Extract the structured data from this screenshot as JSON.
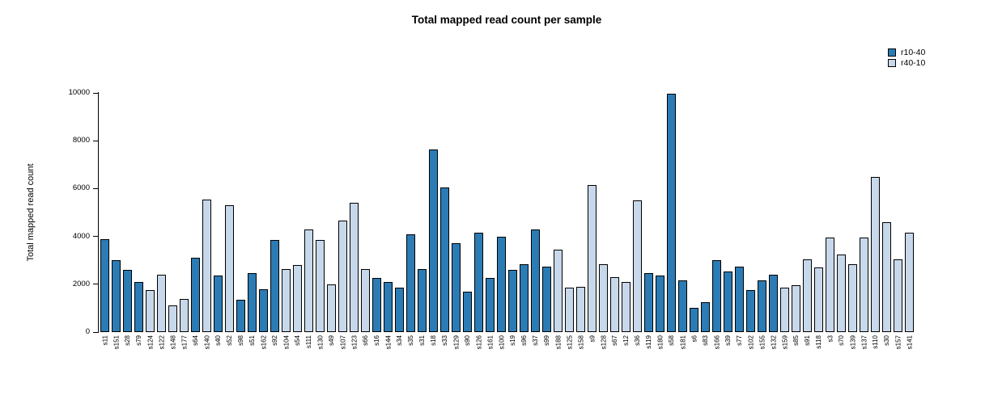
{
  "chart_data": {
    "type": "bar",
    "title": "Total mapped read count per sample",
    "ylabel": "Total mapped read count",
    "xlabel": "",
    "ylim": [
      0,
      10000
    ],
    "yticks": [
      0,
      2000,
      4000,
      6000,
      8000,
      10000
    ],
    "grid": false,
    "legend_position": "top-right",
    "legend": [
      {
        "name": "r10-40",
        "color": "#2b7bb5"
      },
      {
        "name": "r40-10",
        "color": "#c7d8eb"
      }
    ],
    "samples": [
      {
        "label": "s11",
        "value": 3900,
        "group": "r10-40"
      },
      {
        "label": "s151",
        "value": 3000,
        "group": "r10-40"
      },
      {
        "label": "s28",
        "value": 2600,
        "group": "r10-40"
      },
      {
        "label": "s79",
        "value": 2100,
        "group": "r10-40"
      },
      {
        "label": "s124",
        "value": 1750,
        "group": "r40-10"
      },
      {
        "label": "s122",
        "value": 2400,
        "group": "r40-10"
      },
      {
        "label": "s148",
        "value": 1100,
        "group": "r40-10"
      },
      {
        "label": "s177",
        "value": 1400,
        "group": "r40-10"
      },
      {
        "label": "s64",
        "value": 3100,
        "group": "r10-40"
      },
      {
        "label": "s140",
        "value": 5550,
        "group": "r40-10"
      },
      {
        "label": "s40",
        "value": 2350,
        "group": "r10-40"
      },
      {
        "label": "s52",
        "value": 5300,
        "group": "r40-10"
      },
      {
        "label": "s98",
        "value": 1350,
        "group": "r10-40"
      },
      {
        "label": "s51",
        "value": 2450,
        "group": "r10-40"
      },
      {
        "label": "s162",
        "value": 1800,
        "group": "r10-40"
      },
      {
        "label": "s92",
        "value": 3850,
        "group": "r10-40"
      },
      {
        "label": "s104",
        "value": 2650,
        "group": "r40-10"
      },
      {
        "label": "s54",
        "value": 2800,
        "group": "r40-10"
      },
      {
        "label": "s111",
        "value": 4300,
        "group": "r40-10"
      },
      {
        "label": "s130",
        "value": 3850,
        "group": "r40-10"
      },
      {
        "label": "s49",
        "value": 2000,
        "group": "r40-10"
      },
      {
        "label": "s107",
        "value": 4650,
        "group": "r40-10"
      },
      {
        "label": "s123",
        "value": 5400,
        "group": "r40-10"
      },
      {
        "label": "s66",
        "value": 2650,
        "group": "r40-10"
      },
      {
        "label": "s16",
        "value": 2250,
        "group": "r10-40"
      },
      {
        "label": "s144",
        "value": 2100,
        "group": "r10-40"
      },
      {
        "label": "s34",
        "value": 1850,
        "group": "r10-40"
      },
      {
        "label": "s35",
        "value": 4100,
        "group": "r10-40"
      },
      {
        "label": "s31",
        "value": 2650,
        "group": "r10-40"
      },
      {
        "label": "s18",
        "value": 7650,
        "group": "r10-40"
      },
      {
        "label": "s33",
        "value": 6050,
        "group": "r10-40"
      },
      {
        "label": "s129",
        "value": 3700,
        "group": "r10-40"
      },
      {
        "label": "s90",
        "value": 1700,
        "group": "r10-40"
      },
      {
        "label": "s126",
        "value": 4150,
        "group": "r10-40"
      },
      {
        "label": "s161",
        "value": 2250,
        "group": "r10-40"
      },
      {
        "label": "s100",
        "value": 4000,
        "group": "r10-40"
      },
      {
        "label": "s19",
        "value": 2600,
        "group": "r10-40"
      },
      {
        "label": "s96",
        "value": 2850,
        "group": "r10-40"
      },
      {
        "label": "s37",
        "value": 4300,
        "group": "r10-40"
      },
      {
        "label": "s99",
        "value": 2750,
        "group": "r10-40"
      },
      {
        "label": "s188",
        "value": 3450,
        "group": "r40-10"
      },
      {
        "label": "s125",
        "value": 1850,
        "group": "r40-10"
      },
      {
        "label": "s158",
        "value": 1900,
        "group": "r40-10"
      },
      {
        "label": "s9",
        "value": 6150,
        "group": "r40-10"
      },
      {
        "label": "s128",
        "value": 2850,
        "group": "r40-10"
      },
      {
        "label": "s67",
        "value": 2300,
        "group": "r40-10"
      },
      {
        "label": "s12",
        "value": 2100,
        "group": "r40-10"
      },
      {
        "label": "s36",
        "value": 5500,
        "group": "r40-10"
      },
      {
        "label": "s119",
        "value": 2450,
        "group": "r10-40"
      },
      {
        "label": "s180",
        "value": 2350,
        "group": "r10-40"
      },
      {
        "label": "s58",
        "value": 9950,
        "group": "r10-40"
      },
      {
        "label": "s181",
        "value": 2150,
        "group": "r10-40"
      },
      {
        "label": "s6",
        "value": 1000,
        "group": "r10-40"
      },
      {
        "label": "s83",
        "value": 1250,
        "group": "r10-40"
      },
      {
        "label": "s166",
        "value": 3000,
        "group": "r10-40"
      },
      {
        "label": "s39",
        "value": 2550,
        "group": "r10-40"
      },
      {
        "label": "s77",
        "value": 2750,
        "group": "r10-40"
      },
      {
        "label": "s102",
        "value": 1750,
        "group": "r10-40"
      },
      {
        "label": "s155",
        "value": 2150,
        "group": "r10-40"
      },
      {
        "label": "s132",
        "value": 2400,
        "group": "r10-40"
      },
      {
        "label": "s159",
        "value": 1850,
        "group": "r40-10"
      },
      {
        "label": "s85",
        "value": 1950,
        "group": "r40-10"
      },
      {
        "label": "s91",
        "value": 3050,
        "group": "r40-10"
      },
      {
        "label": "s118",
        "value": 2700,
        "group": "r40-10"
      },
      {
        "label": "s3",
        "value": 3950,
        "group": "r40-10"
      },
      {
        "label": "s70",
        "value": 3250,
        "group": "r40-10"
      },
      {
        "label": "s139",
        "value": 2850,
        "group": "r40-10"
      },
      {
        "label": "s137",
        "value": 3950,
        "group": "r40-10"
      },
      {
        "label": "s110",
        "value": 6500,
        "group": "r40-10"
      },
      {
        "label": "s30",
        "value": 4600,
        "group": "r40-10"
      },
      {
        "label": "s157",
        "value": 3050,
        "group": "r40-10"
      },
      {
        "label": "s141",
        "value": 4150,
        "group": "r40-10"
      }
    ]
  }
}
